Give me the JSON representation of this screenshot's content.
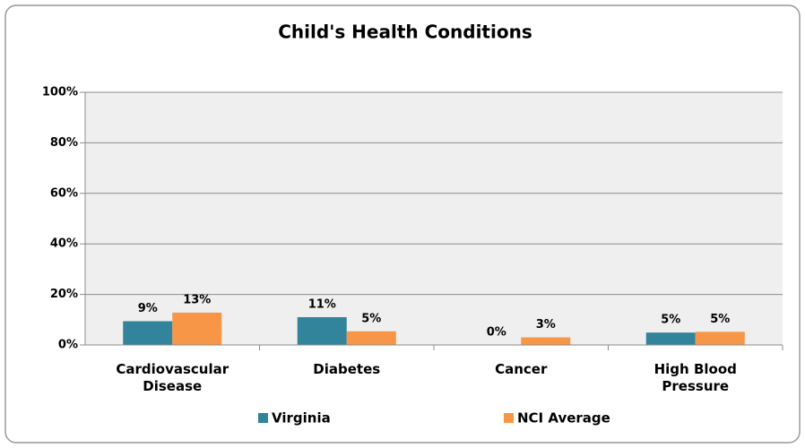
{
  "chart_data": {
    "type": "bar",
    "title": "Child's Health Conditions",
    "categories": [
      "Cardiovascular Disease",
      "Diabetes",
      "Cancer",
      "High Blood Pressure"
    ],
    "series": [
      {
        "name": "Virginia",
        "color": "#31849b",
        "values": [
          9.4,
          11,
          0,
          4.9
        ],
        "value_labels": [
          "9%",
          "11%",
          "0%",
          "5%"
        ]
      },
      {
        "name": "NCI Average",
        "color": "#f79646",
        "values": [
          12.8,
          5.4,
          3,
          5.2
        ],
        "value_labels": [
          "13%",
          "5%",
          "3%",
          "5%"
        ]
      }
    ],
    "ylim": [
      0,
      100
    ],
    "yticks": [
      {
        "value": 0,
        "label": "0%"
      },
      {
        "value": 20,
        "label": "20%"
      },
      {
        "value": 40,
        "label": "40%"
      },
      {
        "value": 60,
        "label": "60%"
      },
      {
        "value": 80,
        "label": "80%"
      },
      {
        "value": 100,
        "label": "100%"
      }
    ],
    "grid": true
  }
}
